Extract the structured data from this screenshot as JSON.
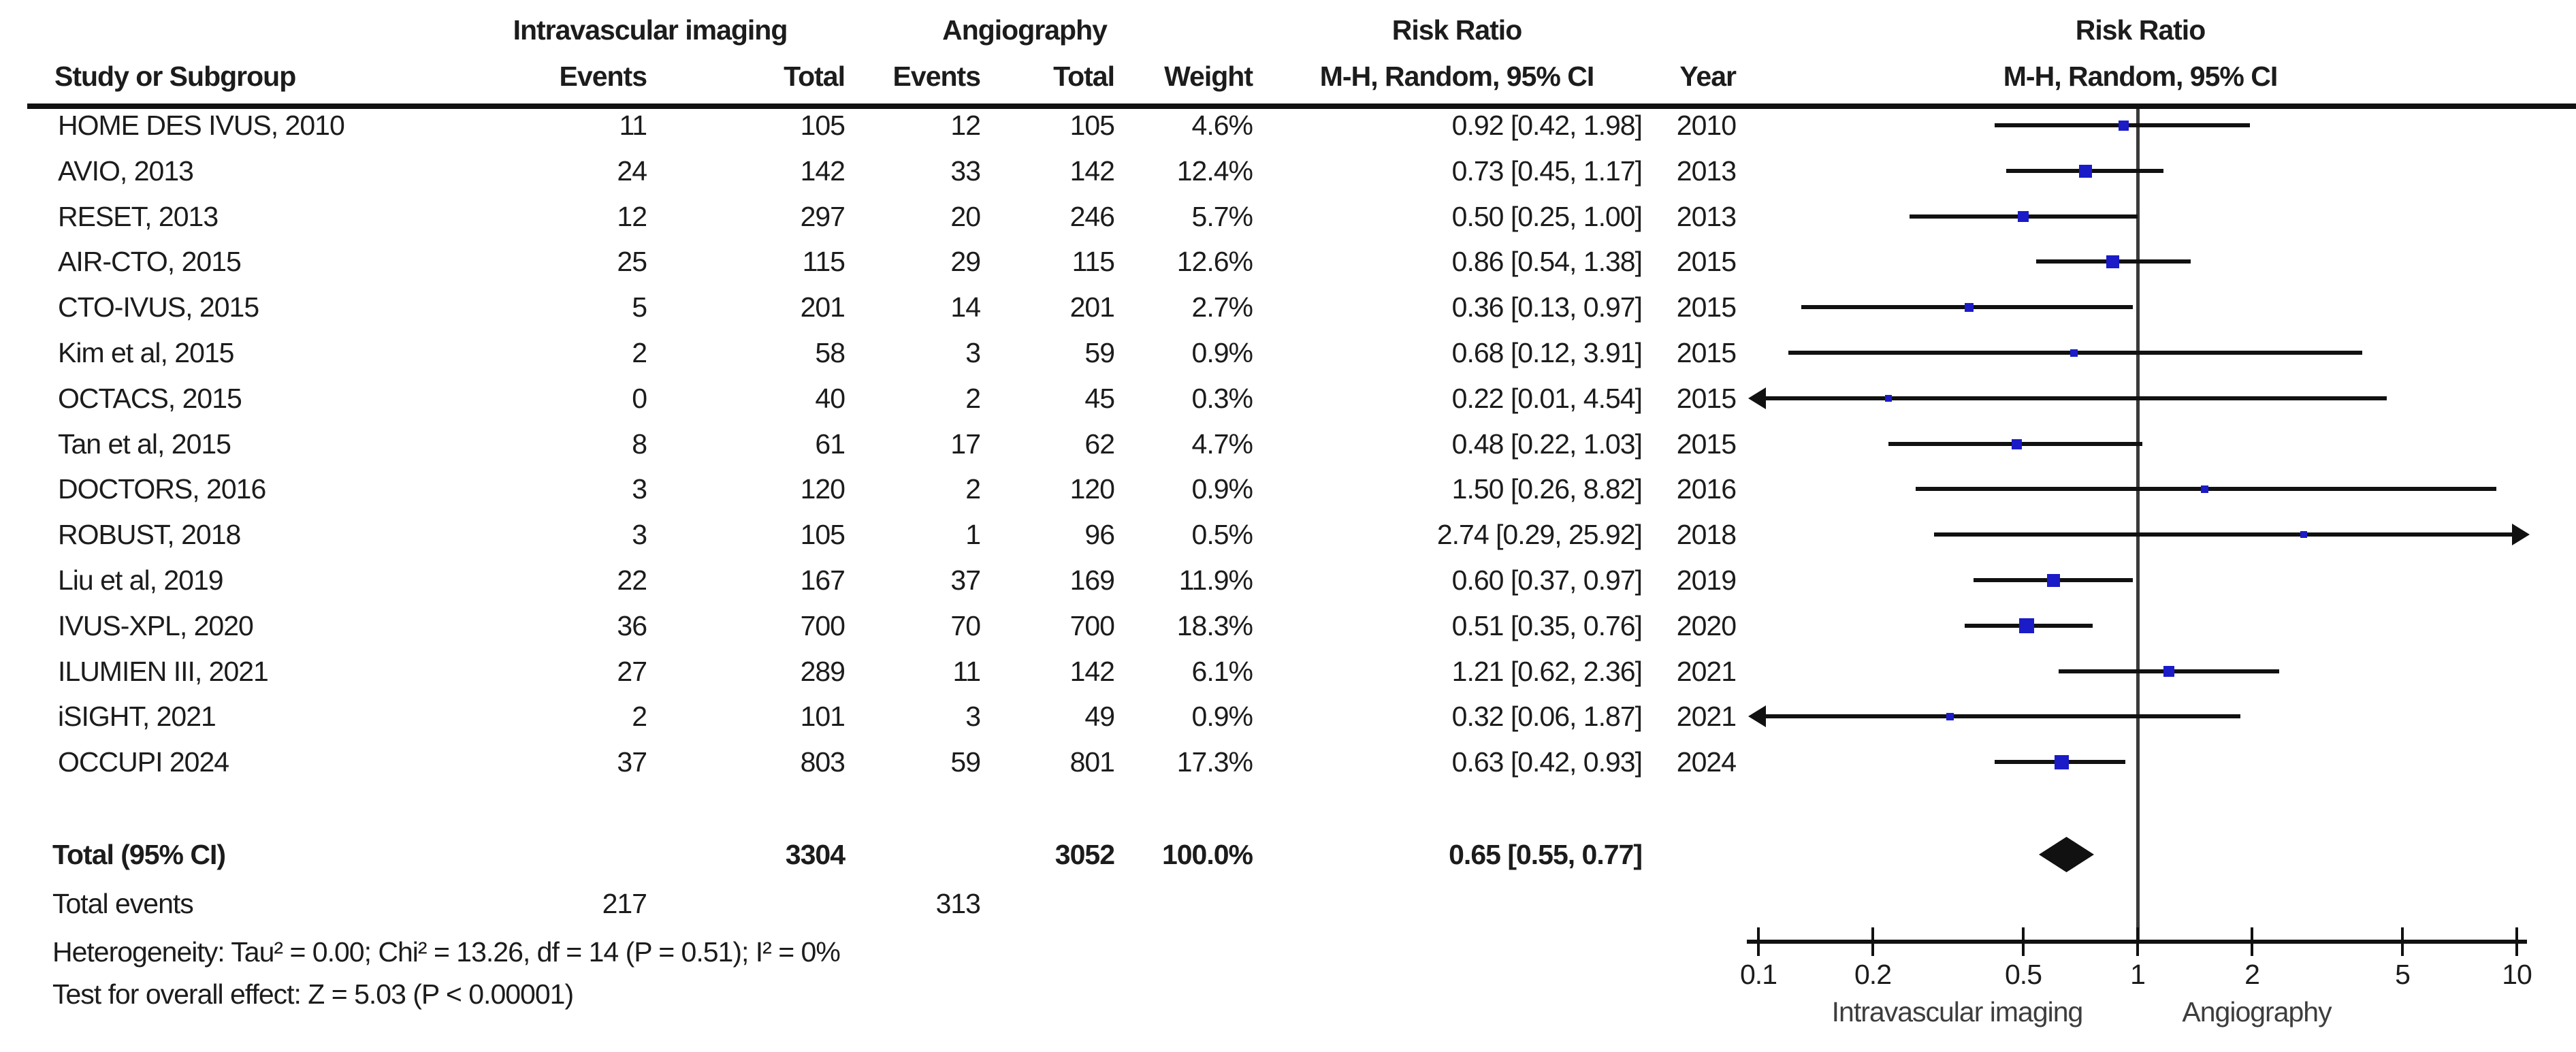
{
  "header": {
    "group1": "Intravascular imaging",
    "group2": "Angiography",
    "col_study": "Study or Subgroup",
    "col_events": "Events",
    "col_total": "Total",
    "col_weight": "Weight",
    "rr_title": "Risk Ratio",
    "rr_sub": "M-H, Random, 95% CI",
    "col_year": "Year",
    "plot_title": "Risk Ratio",
    "plot_sub": "M-H, Random, 95% CI"
  },
  "chart_data": {
    "type": "forest",
    "effect_measure": "Risk Ratio, M-H, Random, 95% CI",
    "x_scale": "log10",
    "axis_ticks": [
      0.1,
      0.2,
      0.5,
      1,
      2,
      5,
      10
    ],
    "axis_range": [
      0.1,
      10
    ],
    "favors_left_label": "Intravascular imaging",
    "favors_right_label": "Angiography",
    "marker_color": "#1b1bc8",
    "line_color": "#111111",
    "studies": [
      {
        "name": "HOME DES IVUS, 2010",
        "ev1": "11",
        "tot1": "105",
        "ev2": "12",
        "tot2": "105",
        "weight": "4.6%",
        "rr": 0.92,
        "lo": 0.42,
        "hi": 1.98,
        "ci_label": "0.92 [0.42, 1.98]",
        "year": "2010"
      },
      {
        "name": "AVIO, 2013",
        "ev1": "24",
        "tot1": "142",
        "ev2": "33",
        "tot2": "142",
        "weight": "12.4%",
        "rr": 0.73,
        "lo": 0.45,
        "hi": 1.17,
        "ci_label": "0.73 [0.45, 1.17]",
        "year": "2013"
      },
      {
        "name": "RESET, 2013",
        "ev1": "12",
        "tot1": "297",
        "ev2": "20",
        "tot2": "246",
        "weight": "5.7%",
        "rr": 0.5,
        "lo": 0.25,
        "hi": 1.0,
        "ci_label": "0.50 [0.25, 1.00]",
        "year": "2013"
      },
      {
        "name": "AIR-CTO, 2015",
        "ev1": "25",
        "tot1": "115",
        "ev2": "29",
        "tot2": "115",
        "weight": "12.6%",
        "rr": 0.86,
        "lo": 0.54,
        "hi": 1.38,
        "ci_label": "0.86 [0.54, 1.38]",
        "year": "2015"
      },
      {
        "name": "CTO-IVUS, 2015",
        "ev1": "5",
        "tot1": "201",
        "ev2": "14",
        "tot2": "201",
        "weight": "2.7%",
        "rr": 0.36,
        "lo": 0.13,
        "hi": 0.97,
        "ci_label": "0.36 [0.13, 0.97]",
        "year": "2015"
      },
      {
        "name": "Kim et al, 2015",
        "ev1": "2",
        "tot1": "58",
        "ev2": "3",
        "tot2": "59",
        "weight": "0.9%",
        "rr": 0.68,
        "lo": 0.12,
        "hi": 3.91,
        "ci_label": "0.68 [0.12, 3.91]",
        "year": "2015"
      },
      {
        "name": "OCTACS, 2015",
        "ev1": "0",
        "tot1": "40",
        "ev2": "2",
        "tot2": "45",
        "weight": "0.3%",
        "rr": 0.22,
        "lo": 0.01,
        "hi": 4.54,
        "ci_label": "0.22 [0.01, 4.54]",
        "year": "2015"
      },
      {
        "name": "Tan et al, 2015",
        "ev1": "8",
        "tot1": "61",
        "ev2": "17",
        "tot2": "62",
        "weight": "4.7%",
        "rr": 0.48,
        "lo": 0.22,
        "hi": 1.03,
        "ci_label": "0.48 [0.22, 1.03]",
        "year": "2015"
      },
      {
        "name": "DOCTORS, 2016",
        "ev1": "3",
        "tot1": "120",
        "ev2": "2",
        "tot2": "120",
        "weight": "0.9%",
        "rr": 1.5,
        "lo": 0.26,
        "hi": 8.82,
        "ci_label": "1.50 [0.26, 8.82]",
        "year": "2016"
      },
      {
        "name": "ROBUST, 2018",
        "ev1": "3",
        "tot1": "105",
        "ev2": "1",
        "tot2": "96",
        "weight": "0.5%",
        "rr": 2.74,
        "lo": 0.29,
        "hi": 25.92,
        "ci_label": "2.74 [0.29, 25.92]",
        "year": "2018"
      },
      {
        "name": "Liu et al, 2019",
        "ev1": "22",
        "tot1": "167",
        "ev2": "37",
        "tot2": "169",
        "weight": "11.9%",
        "rr": 0.6,
        "lo": 0.37,
        "hi": 0.97,
        "ci_label": "0.60 [0.37, 0.97]",
        "year": "2019"
      },
      {
        "name": "IVUS-XPL, 2020",
        "ev1": "36",
        "tot1": "700",
        "ev2": "70",
        "tot2": "700",
        "weight": "18.3%",
        "rr": 0.51,
        "lo": 0.35,
        "hi": 0.76,
        "ci_label": "0.51 [0.35, 0.76]",
        "year": "2020"
      },
      {
        "name": "ILUMIEN III, 2021",
        "ev1": "27",
        "tot1": "289",
        "ev2": "11",
        "tot2": "142",
        "weight": "6.1%",
        "rr": 1.21,
        "lo": 0.62,
        "hi": 2.36,
        "ci_label": "1.21 [0.62, 2.36]",
        "year": "2021"
      },
      {
        "name": "iSIGHT, 2021",
        "ev1": "2",
        "tot1": "101",
        "ev2": "3",
        "tot2": "49",
        "weight": "0.9%",
        "rr": 0.32,
        "lo": 0.06,
        "hi": 1.87,
        "ci_label": "0.32 [0.06, 1.87]",
        "year": "2021"
      },
      {
        "name": "OCCUPI 2024",
        "ev1": "37",
        "tot1": "803",
        "ev2": "59",
        "tot2": "801",
        "weight": "17.3%",
        "rr": 0.63,
        "lo": 0.42,
        "hi": 0.93,
        "ci_label": "0.63 [0.42, 0.93]",
        "year": "2024"
      }
    ],
    "total": {
      "label": "Total (95% CI)",
      "tot1": "3304",
      "tot2": "3052",
      "weight": "100.0%",
      "rr": 0.65,
      "lo": 0.55,
      "hi": 0.77,
      "ci_label": "0.65 [0.55, 0.77]"
    },
    "total_events": {
      "label": "Total events",
      "ev1": "217",
      "ev2": "313"
    },
    "heterogeneity": "Heterogeneity: Tau² = 0.00; Chi² = 13.26, df = 14 (P = 0.51); I² = 0%",
    "overall_effect": "Test for overall effect: Z = 5.03 (P < 0.00001)"
  }
}
